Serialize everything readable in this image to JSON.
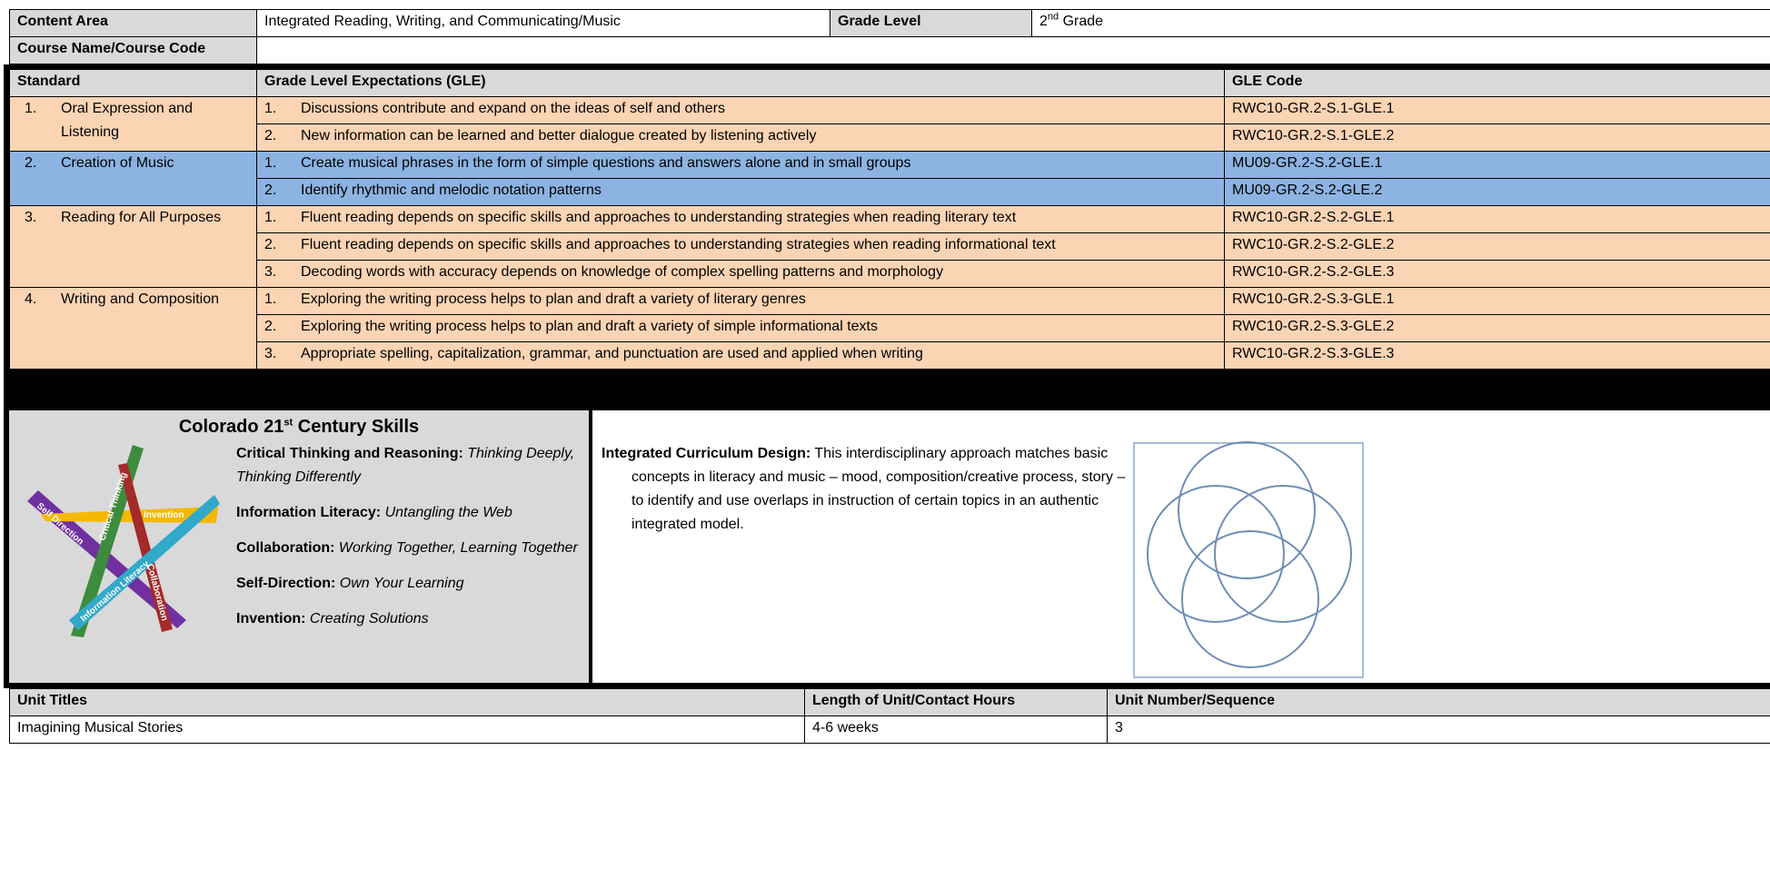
{
  "header": {
    "content_area_label": "Content Area",
    "content_area": "Integrated Reading, Writing, and Communicating/Music",
    "grade_level_label": "Grade Level",
    "grade_number": "2",
    "grade_suffix": "nd",
    "grade_word": "Grade",
    "course_label": "Course Name/Course Code"
  },
  "standards_table": {
    "columns": [
      "Standard",
      "Grade Level Expectations (GLE)",
      "GLE Code"
    ],
    "standards": [
      {
        "number": "1.",
        "name": "Oral Expression and Listening",
        "gles": [
          {
            "number": "1.",
            "text": "Discussions contribute and expand on the ideas of self and others",
            "code": "RWC10-GR.2-S.1-GLE.1"
          },
          {
            "number": "2.",
            "text": "New information can be learned and better dialogue created by listening actively",
            "code": "RWC10-GR.2-S.1-GLE.2"
          }
        ]
      },
      {
        "number": "2.",
        "name": "Creation of Music",
        "gles": [
          {
            "number": "1.",
            "text": "Create musical phrases in the form of simple questions and answers alone and in small groups",
            "code": "MU09-GR.2-S.2-GLE.1"
          },
          {
            "number": "2.",
            "text": "Identify rhythmic and melodic notation patterns",
            "code": "MU09-GR.2-S.2-GLE.2"
          }
        ]
      },
      {
        "number": "3.",
        "name": "Reading for All Purposes",
        "gles": [
          {
            "number": "1.",
            "text": "Fluent reading depends on specific skills and approaches to understanding strategies when reading literary text",
            "code": "RWC10-GR.2-S.2-GLE.1"
          },
          {
            "number": "2.",
            "text": "Fluent reading depends on specific skills and approaches to understanding strategies when reading informational text",
            "code": "RWC10-GR.2-S.2-GLE.2"
          },
          {
            "number": "3.",
            "text": "Decoding words with accuracy depends on knowledge of complex spelling patterns and morphology",
            "code": "RWC10-GR.2-S.2-GLE.3"
          }
        ]
      },
      {
        "number": "4.",
        "name": "Writing and Composition",
        "gles": [
          {
            "number": "1.",
            "text": "Exploring the writing process helps to plan and draft a variety of literary genres",
            "code": "RWC10-GR.2-S.3-GLE.1"
          },
          {
            "number": "2.",
            "text": "Exploring the writing process helps to plan and draft a variety of simple informational texts",
            "code": "RWC10-GR.2-S.3-GLE.2"
          },
          {
            "number": "3.",
            "text": "Appropriate spelling, capitalization, grammar, and punctuation are used and applied when writing",
            "code": "RWC10-GR.2-S.3-GLE.3"
          }
        ]
      }
    ]
  },
  "skills": {
    "title_start": "Colorado 21",
    "title_sup": "st",
    "title_end": " Century Skills",
    "items": [
      {
        "label": "Critical Thinking and Reasoning:",
        "description": "Thinking Deeply, Thinking Differently"
      },
      {
        "label": "Information Literacy:",
        "description": "Untangling the Web"
      },
      {
        "label": "Collaboration:",
        "description": "Working Together, Learning Together"
      },
      {
        "label": "Self-Direction:",
        "description": "Own Your Learning"
      },
      {
        "label": "Invention:",
        "description": "Creating Solutions"
      }
    ],
    "star_labels": [
      "Critical Thinking",
      "Self Direction",
      "Invention",
      "Information Literacy",
      "Collaboration"
    ]
  },
  "design": {
    "label": "Integrated Curriculum Design:",
    "text": "This interdisciplinary approach matches basic concepts in literacy and music – mood, composition/creative process, story – to identify and use overlaps in instruction of certain topics in an authentic integrated model."
  },
  "units_table": {
    "columns": [
      "Unit Titles",
      "Length of Unit/Contact Hours",
      "Unit Number/Sequence"
    ],
    "rows": [
      [
        "Imagining Musical Stories",
        "4-6 weeks",
        "3"
      ]
    ]
  }
}
